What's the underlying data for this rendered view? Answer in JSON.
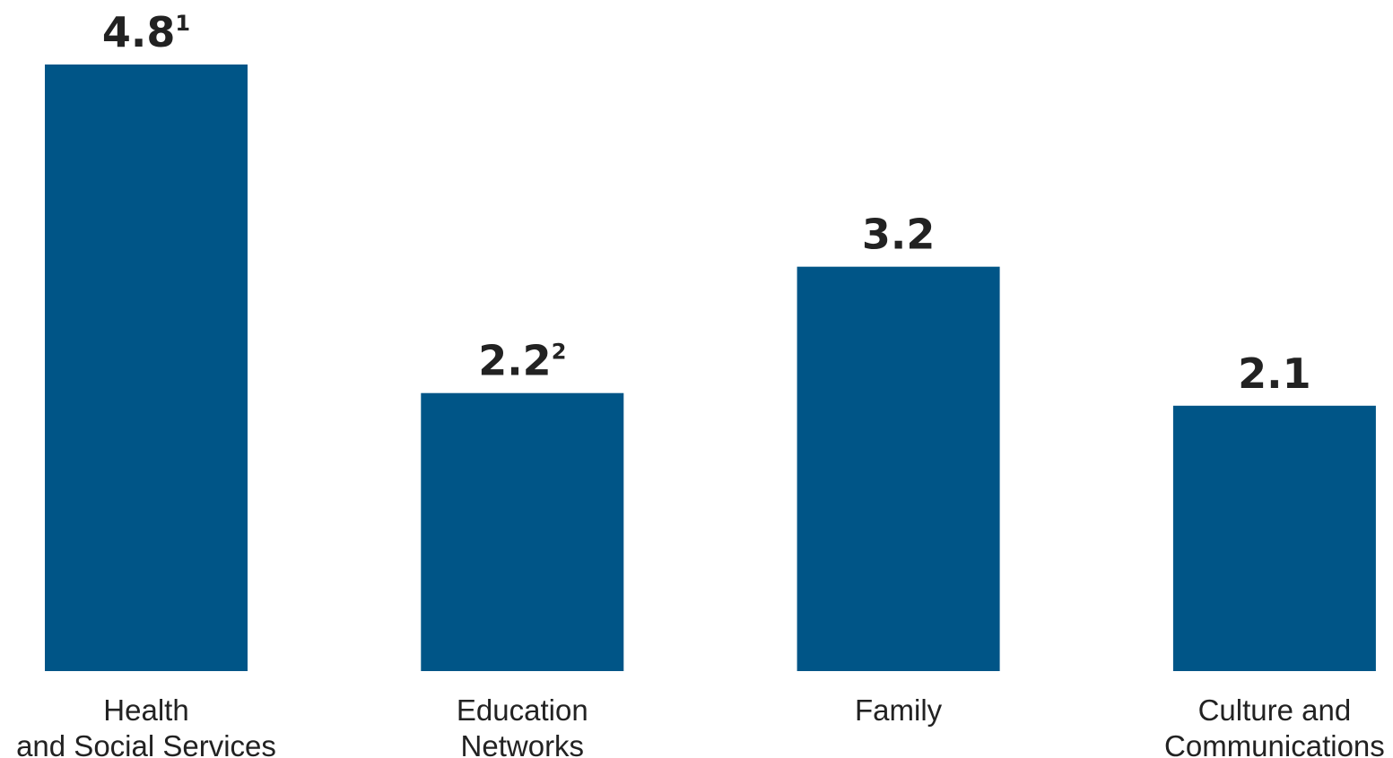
{
  "chart_data": {
    "type": "bar",
    "categories": [
      [
        "Health",
        "and Social Services"
      ],
      [
        "Education",
        "Networks"
      ],
      [
        "Family"
      ],
      [
        "Culture and",
        "Communications"
      ]
    ],
    "values": [
      4.8,
      2.2,
      3.2,
      2.1
    ],
    "value_labels": [
      "4.8",
      "2.2",
      "3.2",
      "2.1"
    ],
    "footnote_marks": [
      "1",
      "2",
      "",
      ""
    ],
    "bar_color": "#005587",
    "title": "",
    "xlabel": "",
    "ylabel": "",
    "ylim": [
      0,
      4.8
    ],
    "grid": false,
    "legend": "none"
  }
}
